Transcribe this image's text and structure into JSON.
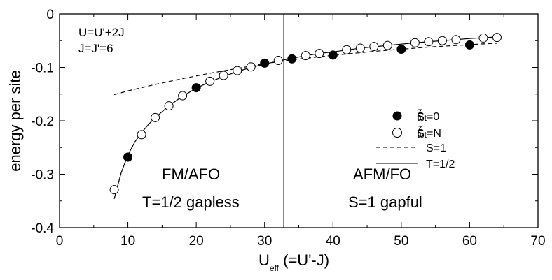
{
  "chart_data": {
    "type": "scatter",
    "xlabel": "U",
    "xlabel_sub": "eff",
    "xlabel_suffix": " (=U'-J)",
    "ylabel": "energy per site",
    "xlim": [
      0,
      70
    ],
    "ylim": [
      -0.4,
      0
    ],
    "xticks": [
      0,
      10,
      20,
      30,
      40,
      50,
      60,
      70
    ],
    "xtick_labels": [
      "0",
      "10",
      "20",
      "30",
      "40",
      "50",
      "60",
      "70"
    ],
    "yticks": [
      0,
      -0.1,
      -0.2,
      -0.3,
      -0.4
    ],
    "ytick_labels": [
      "0",
      "-0.1",
      "-0.2",
      "-0.3",
      "-0.4"
    ],
    "vertical_line_x": 32.8,
    "annotations": {
      "params_line1": "U=U'+2J",
      "params_line2": "J=J'=6",
      "left_phase": "FM/AFO",
      "left_state": "T=1/2 gapless",
      "right_phase": "AFM/FO",
      "right_state": "S=1 gapful"
    },
    "series": [
      {
        "name": "S^z_tot=0",
        "legend_main": "S",
        "legend_sup": "z",
        "legend_sub": "tot",
        "legend_tail": "=0",
        "marker": "filled-circle",
        "x": [
          10,
          20,
          30,
          34,
          40,
          50,
          60
        ],
        "y": [
          -0.268,
          -0.138,
          -0.092,
          -0.084,
          -0.077,
          -0.066,
          -0.058
        ]
      },
      {
        "name": "S^z_tot=N",
        "legend_main": "S",
        "legend_sup": "z",
        "legend_sub": "tot",
        "legend_tail": "=N",
        "marker": "open-circle",
        "x": [
          8,
          12,
          14,
          16,
          18,
          22,
          24,
          26,
          28,
          32,
          36,
          38,
          42,
          44,
          46,
          48,
          52,
          54,
          56,
          58,
          62,
          64
        ],
        "y": [
          -0.329,
          -0.226,
          -0.194,
          -0.172,
          -0.153,
          -0.126,
          -0.115,
          -0.106,
          -0.099,
          -0.087,
          -0.078,
          -0.074,
          -0.067,
          -0.064,
          -0.061,
          -0.059,
          -0.054,
          -0.052,
          -0.05,
          -0.048,
          -0.045,
          -0.044
        ]
      },
      {
        "name": "S=1",
        "legend_label": "S=1",
        "style": "dashed",
        "x": [
          8,
          10,
          14,
          18,
          22,
          26,
          30,
          34,
          38,
          42,
          46,
          50,
          54,
          58,
          62,
          64
        ],
        "y": [
          -0.151,
          -0.144,
          -0.132,
          -0.121,
          -0.111,
          -0.102,
          -0.093,
          -0.086,
          -0.08,
          -0.075,
          -0.07,
          -0.066,
          -0.062,
          -0.059,
          -0.056,
          -0.055
        ]
      },
      {
        "name": "T=1/2",
        "legend_label": "T=1/2",
        "style": "solid",
        "x": [
          8,
          9,
          10,
          11,
          12,
          13,
          14,
          16,
          18,
          20,
          22,
          24,
          26,
          28,
          30,
          32,
          34,
          36,
          38,
          40,
          44,
          48,
          52,
          56,
          60,
          64
        ],
        "y": [
          -0.346,
          -0.298,
          -0.264,
          -0.24,
          -0.222,
          -0.207,
          -0.194,
          -0.172,
          -0.154,
          -0.139,
          -0.127,
          -0.117,
          -0.108,
          -0.1,
          -0.094,
          -0.088,
          -0.083,
          -0.078,
          -0.074,
          -0.071,
          -0.064,
          -0.059,
          -0.054,
          -0.05,
          -0.046,
          -0.043
        ]
      }
    ]
  }
}
